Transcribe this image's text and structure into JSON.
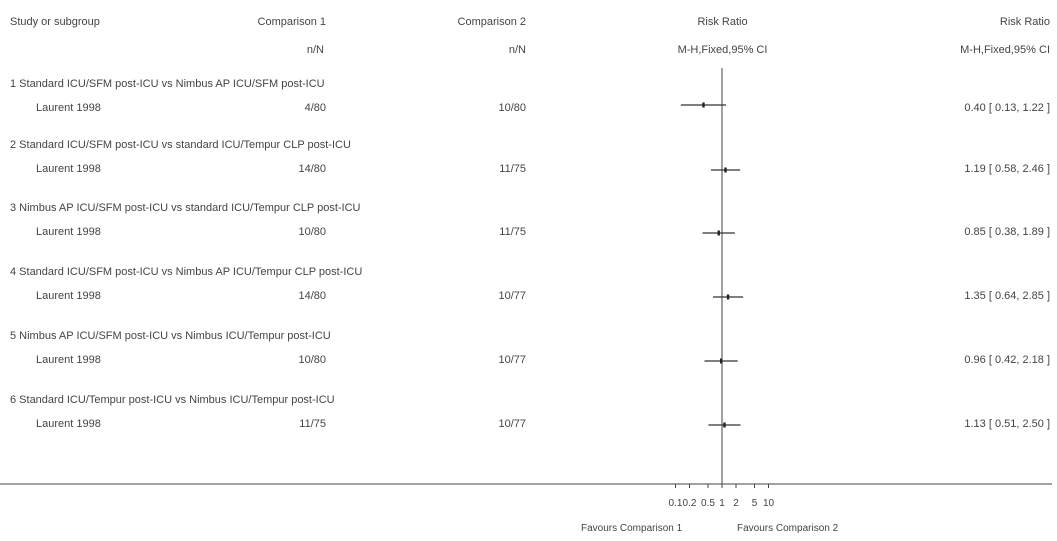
{
  "headers": {
    "study": "Study or subgroup",
    "comp1": "Comparison 1",
    "comp2": "Comparison 2",
    "rr_plot": "Risk Ratio",
    "rr_text": "Risk Ratio",
    "comp1_sub": "n/N",
    "comp2_sub": "n/N",
    "rr_plot_sub": "M-H,Fixed,95% CI",
    "rr_text_sub": "M-H,Fixed,95% CI"
  },
  "chart_data": {
    "type": "forest",
    "x_scale": "log",
    "xlim": [
      0.1,
      10
    ],
    "ticks": [
      "0.1",
      "0.2",
      "0.5",
      "1",
      "2",
      "5",
      "10"
    ],
    "xlabel_left": "Favours Comparison 1",
    "xlabel_right": "Favours Comparison 2",
    "subgroups": [
      {
        "title": "1 Standard ICU/SFM post-ICU vs Nimbus AP ICU/SFM post-ICU",
        "study": "Laurent 1998",
        "c1": "4/80",
        "c2": "10/80",
        "rr": 0.4,
        "lo": 0.13,
        "hi": 1.22,
        "text": "0.40 [ 0.13, 1.22 ]"
      },
      {
        "title": "2 Standard ICU/SFM post-ICU vs standard ICU/Tempur CLP post-ICU",
        "study": "Laurent 1998",
        "c1": "14/80",
        "c2": "11/75",
        "rr": 1.19,
        "lo": 0.58,
        "hi": 2.46,
        "text": "1.19 [ 0.58, 2.46 ]"
      },
      {
        "title": "3 Nimbus AP ICU/SFM post-ICU vs standard ICU/Tempur CLP post-ICU",
        "study": "Laurent 1998",
        "c1": "10/80",
        "c2": "11/75",
        "rr": 0.85,
        "lo": 0.38,
        "hi": 1.89,
        "text": "0.85 [ 0.38, 1.89 ]"
      },
      {
        "title": "4 Standard ICU/SFM post-ICU vs Nimbus AP ICU/Tempur CLP post-ICU",
        "study": "Laurent 1998",
        "c1": "14/80",
        "c2": "10/77",
        "rr": 1.35,
        "lo": 0.64,
        "hi": 2.85,
        "text": "1.35 [ 0.64, 2.85 ]"
      },
      {
        "title": "5 Nimbus AP ICU/SFM post-ICU vs Nimbus ICU/Tempur post-ICU",
        "study": "Laurent 1998",
        "c1": "10/80",
        "c2": "10/77",
        "rr": 0.96,
        "lo": 0.42,
        "hi": 2.18,
        "text": "0.96 [ 0.42, 2.18 ]"
      },
      {
        "title": "6 Standard ICU/Tempur post-ICU vs Nimbus ICU/Tempur post-ICU",
        "study": "Laurent 1998",
        "c1": "11/75",
        "c2": "10/77",
        "rr": 1.13,
        "lo": 0.51,
        "hi": 2.5,
        "text": "1.13 [ 0.51, 2.50 ]"
      }
    ]
  }
}
